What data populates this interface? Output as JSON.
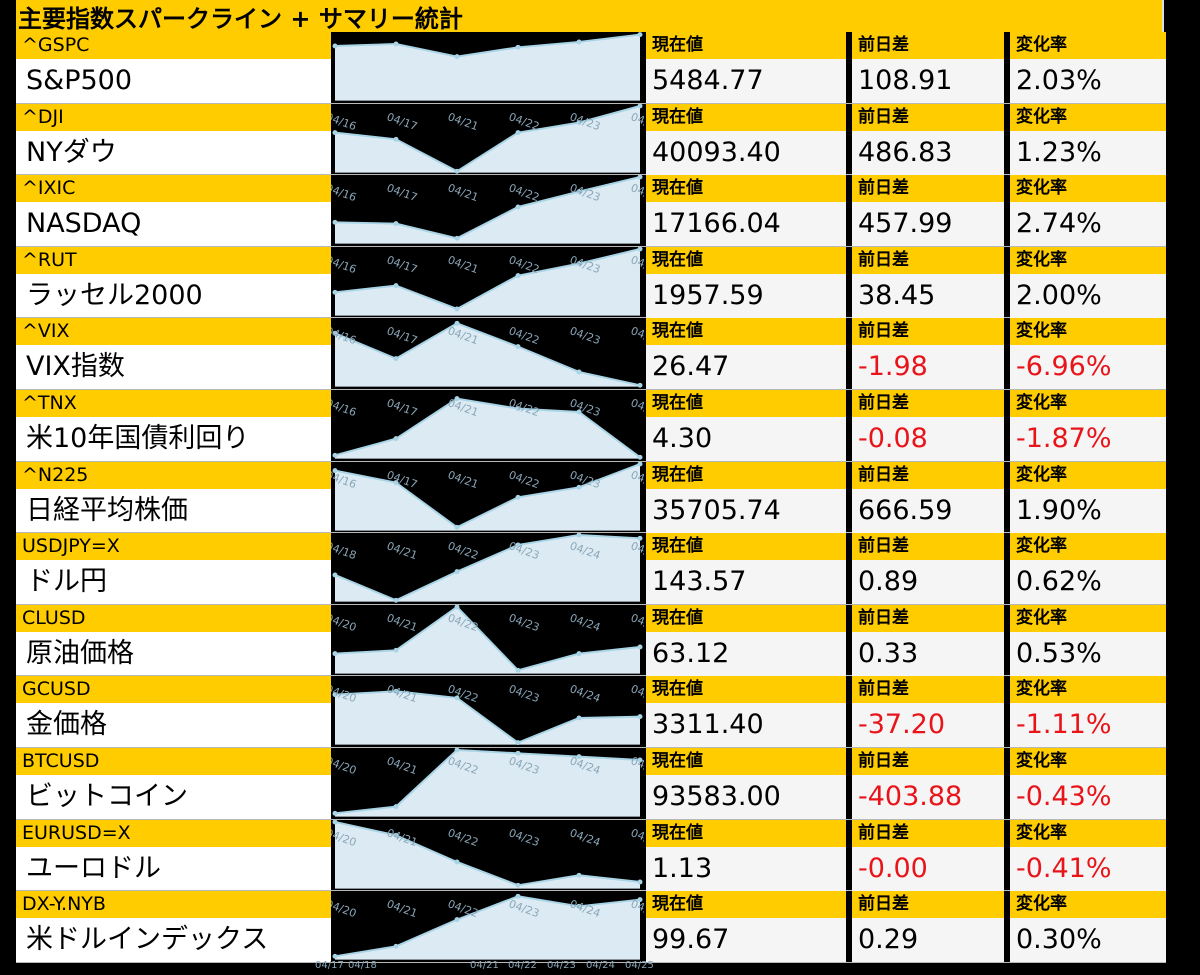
{
  "title": "主要指数スパークライン + サマリー統計",
  "labels": {
    "current": "現在値",
    "change": "前日差",
    "pct": "変化率"
  },
  "colors": {
    "header_yellow": "#ffcc00",
    "negative": "#e8141a",
    "spark_line": "#a8d4e6",
    "spark_fill": "#dcebf3",
    "tick_text": "#8aa6b8"
  },
  "bottom_axis_labels": [
    "04/17",
    "04/18",
    "04/21",
    "04/22",
    "04/23",
    "04/24",
    "04/25"
  ],
  "rows": [
    {
      "ticker": "^GSPC",
      "name": "S&P500",
      "current": "5484.77",
      "change": "108.91",
      "pct": "2.03%",
      "neg": false
    },
    {
      "ticker": "^DJI",
      "name": "NYダウ",
      "current": "40093.40",
      "change": "486.83",
      "pct": "1.23%",
      "neg": false
    },
    {
      "ticker": "^IXIC",
      "name": "NASDAQ",
      "current": "17166.04",
      "change": "457.99",
      "pct": "2.74%",
      "neg": false
    },
    {
      "ticker": "^RUT",
      "name": "ラッセル2000",
      "current": "1957.59",
      "change": "38.45",
      "pct": "2.00%",
      "neg": false
    },
    {
      "ticker": "^VIX",
      "name": "VIX指数",
      "current": "26.47",
      "change": "-1.98",
      "pct": "-6.96%",
      "neg": true
    },
    {
      "ticker": "^TNX",
      "name": "米10年国債利回り",
      "current": "4.30",
      "change": "-0.08",
      "pct": "-1.87%",
      "neg": true
    },
    {
      "ticker": "^N225",
      "name": "日経平均株価",
      "current": "35705.74",
      "change": "666.59",
      "pct": "1.90%",
      "neg": false
    },
    {
      "ticker": "USDJPY=X",
      "name": "ドル円",
      "current": "143.57",
      "change": "0.89",
      "pct": "0.62%",
      "neg": false
    },
    {
      "ticker": "CLUSD",
      "name": "原油価格",
      "current": "63.12",
      "change": "0.33",
      "pct": "0.53%",
      "neg": false
    },
    {
      "ticker": "GCUSD",
      "name": "金価格",
      "current": "3311.40",
      "change": "-37.20",
      "pct": "-1.11%",
      "neg": true
    },
    {
      "ticker": "BTCUSD",
      "name": "ビットコイン",
      "current": "93583.00",
      "change": "-403.88",
      "pct": "-0.43%",
      "neg": true
    },
    {
      "ticker": "EURUSD=X",
      "name": "ユーロドル",
      "current": "1.13",
      "change": "-0.00",
      "pct": "-0.41%",
      "neg": true
    },
    {
      "ticker": "DX-Y.NYB",
      "name": "米ドルインデックス",
      "current": "99.67",
      "change": "0.29",
      "pct": "0.30%",
      "neg": false
    }
  ],
  "chart_data": {
    "type": "area",
    "series": [
      {
        "name": "^GSPC",
        "x": [
          "04/16",
          "04/17",
          "04/21",
          "04/22",
          "04/23",
          "04/24"
        ],
        "values": [
          0.82,
          0.85,
          0.66,
          0.8,
          0.88,
          0.99
        ],
        "tick_labels": []
      },
      {
        "name": "^DJI",
        "x": [
          "04/16",
          "04/17",
          "04/21",
          "04/22",
          "04/23",
          "04/24"
        ],
        "values": [
          0.6,
          0.5,
          0.02,
          0.6,
          0.75,
          1.0
        ],
        "tick_labels": [
          "04/16",
          "04/17",
          "04/21",
          "04/22",
          "04/23",
          "04/24"
        ]
      },
      {
        "name": "^IXIC",
        "x": [
          "04/16",
          "04/17",
          "04/21",
          "04/22",
          "04/23",
          "04/24"
        ],
        "values": [
          0.32,
          0.3,
          0.08,
          0.55,
          0.78,
          1.0
        ],
        "tick_labels": [
          "04/16",
          "04/17",
          "04/21",
          "04/22",
          "04/23",
          "04/24"
        ]
      },
      {
        "name": "^RUT",
        "x": [
          "04/16",
          "04/17",
          "04/21",
          "04/22",
          "04/23",
          "04/24"
        ],
        "values": [
          0.35,
          0.45,
          0.1,
          0.6,
          0.78,
          1.0
        ],
        "tick_labels": [
          "04/16",
          "04/17",
          "04/21",
          "04/22",
          "04/23",
          "04/24"
        ]
      },
      {
        "name": "^VIX",
        "x": [
          "04/16",
          "04/17",
          "04/21",
          "04/22",
          "04/23",
          "04/24"
        ],
        "values": [
          0.8,
          0.42,
          0.95,
          0.6,
          0.22,
          0.02
        ],
        "tick_labels": [
          "04/16",
          "04/17",
          "04/21",
          "04/22",
          "04/23",
          "04/24"
        ]
      },
      {
        "name": "^TNX",
        "x": [
          "04/16",
          "04/17",
          "04/21",
          "04/22",
          "04/23",
          "04/24"
        ],
        "values": [
          0.05,
          0.3,
          0.9,
          0.75,
          0.7,
          0.02
        ],
        "tick_labels": [
          "04/16",
          "04/17",
          "04/21",
          "04/22",
          "04/23",
          "04/24"
        ]
      },
      {
        "name": "^N225",
        "x": [
          "04/16",
          "04/17",
          "04/21",
          "04/22",
          "04/23",
          "04/24"
        ],
        "values": [
          0.9,
          0.72,
          0.05,
          0.5,
          0.65,
          1.0
        ],
        "tick_labels": [
          "04/16",
          "04/17",
          "04/21",
          "04/22",
          "04/23",
          "04/24"
        ]
      },
      {
        "name": "USDJPY=X",
        "x": [
          "04/18",
          "04/21",
          "04/22",
          "04/23",
          "04/24",
          "04/25"
        ],
        "values": [
          0.4,
          0.02,
          0.45,
          0.85,
          1.0,
          0.95
        ],
        "tick_labels": [
          "04/18",
          "04/21",
          "04/22",
          "04/23",
          "04/24",
          "04/25"
        ]
      },
      {
        "name": "CLUSD",
        "x": [
          "04/20",
          "04/21",
          "04/22",
          "04/23",
          "04/24",
          "04/25"
        ],
        "values": [
          0.3,
          0.35,
          1.0,
          0.05,
          0.3,
          0.4
        ],
        "tick_labels": [
          "04/20",
          "04/21",
          "04/22",
          "04/23",
          "04/24",
          "04/25"
        ]
      },
      {
        "name": "GCUSD",
        "x": [
          "04/20",
          "04/21",
          "04/22",
          "04/23",
          "04/24",
          "04/25"
        ],
        "values": [
          0.75,
          0.8,
          0.7,
          0.03,
          0.4,
          0.42
        ],
        "tick_labels": [
          "04/20",
          "04/21",
          "04/22",
          "04/23",
          "04/24",
          "04/25"
        ]
      },
      {
        "name": "BTCUSD",
        "x": [
          "04/20",
          "04/21",
          "04/22",
          "04/23",
          "04/24",
          "04/25"
        ],
        "values": [
          0.05,
          0.15,
          1.0,
          0.95,
          0.9,
          0.85
        ],
        "tick_labels": [
          "04/20",
          "04/21",
          "04/22",
          "04/23",
          "04/24",
          "04/25"
        ]
      },
      {
        "name": "EURUSD=X",
        "x": [
          "04/20",
          "04/21",
          "04/22",
          "04/23",
          "04/24",
          "04/25"
        ],
        "values": [
          1.0,
          0.8,
          0.4,
          0.05,
          0.2,
          0.1
        ],
        "tick_labels": [
          "04/20",
          "04/21",
          "04/22",
          "04/23",
          "04/24",
          "04/25"
        ]
      },
      {
        "name": "DX-Y.NYB",
        "x": [
          "04/20",
          "04/21",
          "04/22",
          "04/23",
          "04/24",
          "04/25"
        ],
        "values": [
          0.05,
          0.2,
          0.6,
          0.95,
          0.8,
          0.9
        ],
        "tick_labels": [
          "04/20",
          "04/21",
          "04/22",
          "04/23",
          "04/24",
          "04/25"
        ]
      }
    ]
  }
}
